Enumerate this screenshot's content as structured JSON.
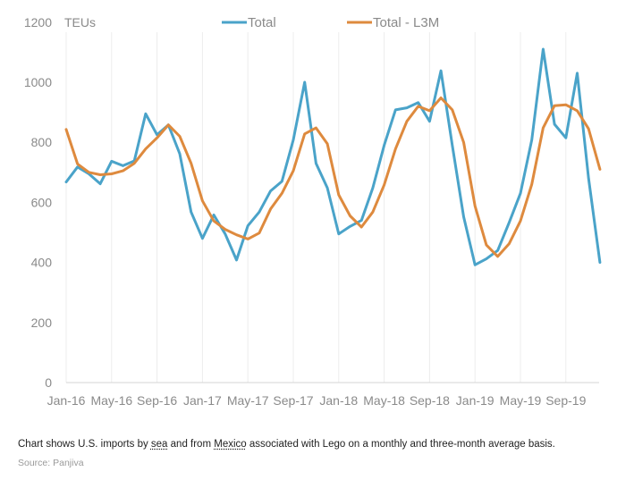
{
  "chart_data": {
    "type": "line",
    "ylim": [
      0,
      1200
    ],
    "ylabel": "TEUs",
    "yticks": [
      0,
      200,
      400,
      600,
      800,
      1000,
      1200
    ],
    "tick_labels": [
      "Jan-16",
      "May-16",
      "Sep-16",
      "Jan-17",
      "May-17",
      "Sep-17",
      "Jan-18",
      "May-18",
      "Sep-18",
      "Jan-19",
      "May-19",
      "Sep-19"
    ],
    "tick_months": [
      0,
      4,
      8,
      12,
      16,
      20,
      24,
      28,
      32,
      36,
      40,
      44
    ],
    "legend_position": "top",
    "grid": "vertical",
    "series": [
      {
        "name": "Total",
        "color": "#4aa3c9",
        "values": [
          668,
          718,
          695,
          662,
          737,
          722,
          738,
          895,
          825,
          858,
          762,
          568,
          480,
          558,
          495,
          408,
          522,
          568,
          638,
          670,
          808,
          1000,
          730,
          648,
          495,
          520,
          540,
          648,
          790,
          908,
          915,
          932,
          870,
          1038,
          790,
          552,
          392,
          412,
          440,
          532,
          630,
          808,
          1110,
          860,
          815,
          1030,
          680,
          400
        ]
      },
      {
        "name": "Total - L3M",
        "color": "#de8a3e",
        "values": [
          843,
          728,
          700,
          692,
          695,
          705,
          730,
          778,
          815,
          858,
          820,
          730,
          605,
          538,
          510,
          492,
          478,
          498,
          578,
          630,
          705,
          828,
          848,
          795,
          625,
          555,
          518,
          568,
          658,
          778,
          870,
          920,
          905,
          948,
          908,
          800,
          588,
          458,
          420,
          462,
          538,
          660,
          848,
          922,
          925,
          905,
          845,
          710
        ]
      }
    ]
  },
  "caption": {
    "before_sea": "Chart shows U.S. imports by ",
    "sea": "sea",
    "between": " and from ",
    "mexico": "Mexico",
    "after": " associated with Lego on a monthly and three-month average basis."
  },
  "source": "Source: Panjiva"
}
